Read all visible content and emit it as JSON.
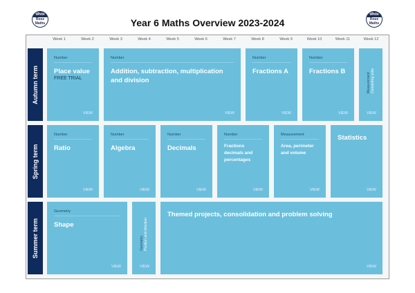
{
  "header": {
    "title": "Year 6 Maths Overview 2023-2024",
    "logo_text": "White Rose Maths"
  },
  "weeks": [
    "Week 1",
    "Week 2",
    "Week 3",
    "Week 4",
    "Week 5",
    "Week 6",
    "Week 7",
    "Week 8",
    "Week 9",
    "Week 10",
    "Week 11",
    "Week 12"
  ],
  "terms": [
    "Autumn term",
    "Spring term",
    "Summer term"
  ],
  "view_label": "VIEW",
  "autumn": [
    {
      "strand": "Number",
      "name": "Place value",
      "note": "FREE TRIAL"
    },
    {
      "strand": "Number",
      "name": "Addition, subtraction, multiplication and division"
    },
    {
      "strand": "Number",
      "name": "Fractions A"
    },
    {
      "strand": "Number",
      "name": "Fractions B"
    },
    {
      "strand": "Measurement",
      "name": "Converting units"
    }
  ],
  "spring": [
    {
      "strand": "Number",
      "name": "Ratio"
    },
    {
      "strand": "Number",
      "name": "Algebra"
    },
    {
      "strand": "Number",
      "name": "Decimals"
    },
    {
      "strand": "Number",
      "name": "Fractions decimals and percentages"
    },
    {
      "strand": "Measurement",
      "name": "Area, perimeter and volume"
    },
    {
      "name": "Statistics"
    }
  ],
  "summer": [
    {
      "strand": "Geometry",
      "name": "Shape"
    },
    {
      "strand": "Geometry",
      "name": "Position and direction"
    },
    {
      "name": "Themed projects, consolidation and problem solving"
    }
  ],
  "colors": {
    "card": "#6bbfdc",
    "term": "#0f2a5c"
  }
}
